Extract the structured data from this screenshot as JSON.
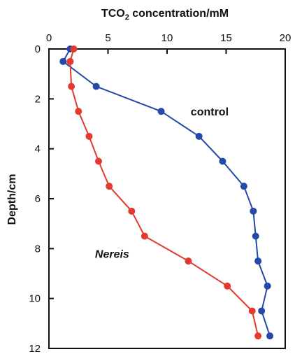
{
  "chart_data": {
    "type": "line",
    "title": "",
    "xlabel_main": "TCO",
    "xlabel_sub": "2",
    "xlabel_rest": " concentration/mM",
    "ylabel": "Depth/cm",
    "xlim": [
      0,
      20
    ],
    "ylim": [
      0,
      12
    ],
    "y_inverted": true,
    "x_axis_position": "top",
    "xticks": [
      "0",
      "5",
      "10",
      "15",
      "20"
    ],
    "yticks": [
      "0",
      "2",
      "4",
      "6",
      "8",
      "10",
      "12"
    ],
    "grid": false,
    "series": [
      {
        "name": "control",
        "label_style": "bold",
        "color": "#2449a8",
        "points": [
          {
            "x": 1.8,
            "y": 0.0
          },
          {
            "x": 1.2,
            "y": 0.5
          },
          {
            "x": 4.0,
            "y": 1.5
          },
          {
            "x": 9.5,
            "y": 2.5
          },
          {
            "x": 12.7,
            "y": 3.5
          },
          {
            "x": 14.7,
            "y": 4.5
          },
          {
            "x": 16.5,
            "y": 5.5
          },
          {
            "x": 17.3,
            "y": 6.5
          },
          {
            "x": 17.5,
            "y": 7.5
          },
          {
            "x": 17.7,
            "y": 8.5
          },
          {
            "x": 18.5,
            "y": 9.5
          },
          {
            "x": 18.0,
            "y": 10.5
          },
          {
            "x": 18.7,
            "y": 11.5
          }
        ]
      },
      {
        "name": "Nereis",
        "label_style": "bold-italic",
        "color": "#e23a2e",
        "points": [
          {
            "x": 2.1,
            "y": 0.0
          },
          {
            "x": 1.8,
            "y": 0.5
          },
          {
            "x": 1.9,
            "y": 1.5
          },
          {
            "x": 2.5,
            "y": 2.5
          },
          {
            "x": 3.4,
            "y": 3.5
          },
          {
            "x": 4.2,
            "y": 4.5
          },
          {
            "x": 5.1,
            "y": 5.5
          },
          {
            "x": 7.0,
            "y": 6.5
          },
          {
            "x": 8.1,
            "y": 7.5
          },
          {
            "x": 11.8,
            "y": 8.5
          },
          {
            "x": 15.1,
            "y": 9.5
          },
          {
            "x": 17.2,
            "y": 10.5
          },
          {
            "x": 17.7,
            "y": 11.5
          }
        ]
      }
    ]
  }
}
